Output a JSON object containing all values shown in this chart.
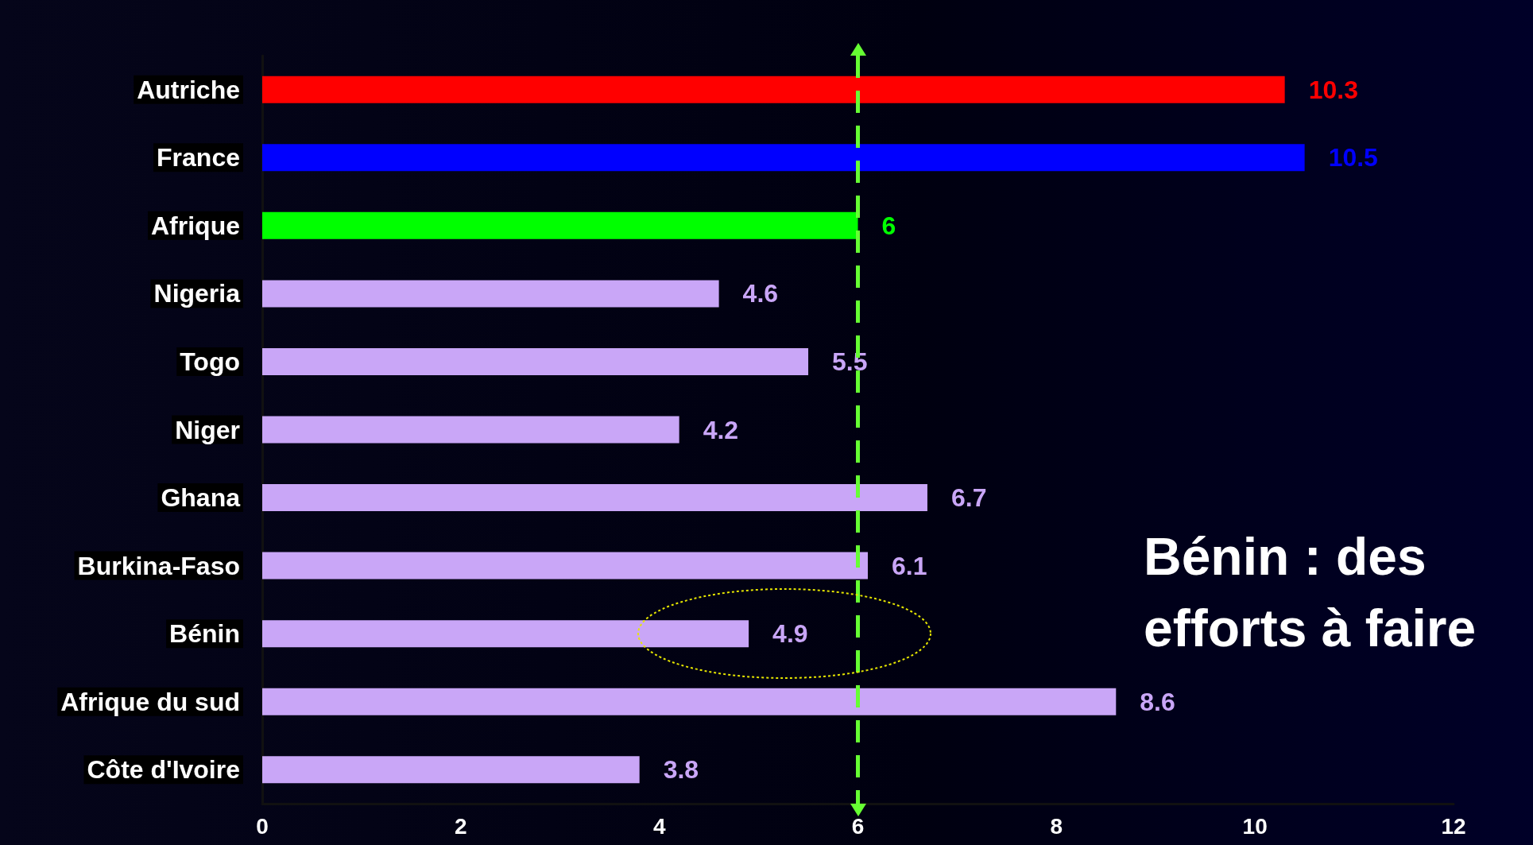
{
  "chart_data": {
    "type": "bar",
    "orientation": "horizontal",
    "categories": [
      "Autriche",
      "France",
      "Afrique",
      "Nigeria",
      "Togo",
      "Niger",
      "Ghana",
      "Burkina-Faso",
      "Bénin",
      "Afrique du sud",
      "Côte d'Ivoire"
    ],
    "values": [
      10.3,
      10.5,
      6,
      4.6,
      5.5,
      4.2,
      6.7,
      6.1,
      4.9,
      8.6,
      3.8
    ],
    "colors": [
      "#ff0000",
      "#0000ff",
      "#00ff00",
      "#c9a6f7",
      "#c9a6f7",
      "#c9a6f7",
      "#c9a6f7",
      "#c9a6f7",
      "#c9a6f7",
      "#c9a6f7",
      "#c9a6f7"
    ],
    "xlim": [
      0,
      12
    ],
    "xticks": [
      0,
      2,
      4,
      6,
      8,
      10,
      12
    ],
    "data_labels": true,
    "grid": false,
    "ref_lines": [
      {
        "axis": "x",
        "value": 6,
        "label": null,
        "color": "#66ff33",
        "line_style": "dashed"
      }
    ],
    "annotations": [
      {
        "text": "Bénin : des efforts à faire"
      }
    ]
  }
}
